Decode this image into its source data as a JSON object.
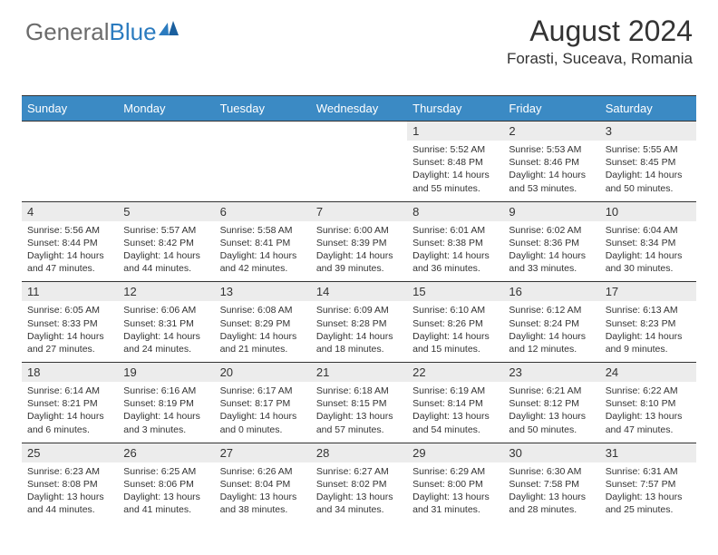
{
  "logo": {
    "general": "General",
    "blue": "Blue"
  },
  "header": {
    "month_title": "August 2024",
    "location": "Forasti, Suceava, Romania"
  },
  "colors": {
    "header_bg": "#3b8ac4",
    "daynum_bg": "#ececec",
    "border": "#333333",
    "text": "#333333",
    "logo_grey": "#6b6b6b",
    "logo_blue": "#2b7bbf"
  },
  "weekdays": [
    "Sunday",
    "Monday",
    "Tuesday",
    "Wednesday",
    "Thursday",
    "Friday",
    "Saturday"
  ],
  "weeks": [
    [
      null,
      null,
      null,
      null,
      {
        "n": "1",
        "sr": "Sunrise: 5:52 AM",
        "ss": "Sunset: 8:48 PM",
        "dl": "Daylight: 14 hours and 55 minutes."
      },
      {
        "n": "2",
        "sr": "Sunrise: 5:53 AM",
        "ss": "Sunset: 8:46 PM",
        "dl": "Daylight: 14 hours and 53 minutes."
      },
      {
        "n": "3",
        "sr": "Sunrise: 5:55 AM",
        "ss": "Sunset: 8:45 PM",
        "dl": "Daylight: 14 hours and 50 minutes."
      }
    ],
    [
      {
        "n": "4",
        "sr": "Sunrise: 5:56 AM",
        "ss": "Sunset: 8:44 PM",
        "dl": "Daylight: 14 hours and 47 minutes."
      },
      {
        "n": "5",
        "sr": "Sunrise: 5:57 AM",
        "ss": "Sunset: 8:42 PM",
        "dl": "Daylight: 14 hours and 44 minutes."
      },
      {
        "n": "6",
        "sr": "Sunrise: 5:58 AM",
        "ss": "Sunset: 8:41 PM",
        "dl": "Daylight: 14 hours and 42 minutes."
      },
      {
        "n": "7",
        "sr": "Sunrise: 6:00 AM",
        "ss": "Sunset: 8:39 PM",
        "dl": "Daylight: 14 hours and 39 minutes."
      },
      {
        "n": "8",
        "sr": "Sunrise: 6:01 AM",
        "ss": "Sunset: 8:38 PM",
        "dl": "Daylight: 14 hours and 36 minutes."
      },
      {
        "n": "9",
        "sr": "Sunrise: 6:02 AM",
        "ss": "Sunset: 8:36 PM",
        "dl": "Daylight: 14 hours and 33 minutes."
      },
      {
        "n": "10",
        "sr": "Sunrise: 6:04 AM",
        "ss": "Sunset: 8:34 PM",
        "dl": "Daylight: 14 hours and 30 minutes."
      }
    ],
    [
      {
        "n": "11",
        "sr": "Sunrise: 6:05 AM",
        "ss": "Sunset: 8:33 PM",
        "dl": "Daylight: 14 hours and 27 minutes."
      },
      {
        "n": "12",
        "sr": "Sunrise: 6:06 AM",
        "ss": "Sunset: 8:31 PM",
        "dl": "Daylight: 14 hours and 24 minutes."
      },
      {
        "n": "13",
        "sr": "Sunrise: 6:08 AM",
        "ss": "Sunset: 8:29 PM",
        "dl": "Daylight: 14 hours and 21 minutes."
      },
      {
        "n": "14",
        "sr": "Sunrise: 6:09 AM",
        "ss": "Sunset: 8:28 PM",
        "dl": "Daylight: 14 hours and 18 minutes."
      },
      {
        "n": "15",
        "sr": "Sunrise: 6:10 AM",
        "ss": "Sunset: 8:26 PM",
        "dl": "Daylight: 14 hours and 15 minutes."
      },
      {
        "n": "16",
        "sr": "Sunrise: 6:12 AM",
        "ss": "Sunset: 8:24 PM",
        "dl": "Daylight: 14 hours and 12 minutes."
      },
      {
        "n": "17",
        "sr": "Sunrise: 6:13 AM",
        "ss": "Sunset: 8:23 PM",
        "dl": "Daylight: 14 hours and 9 minutes."
      }
    ],
    [
      {
        "n": "18",
        "sr": "Sunrise: 6:14 AM",
        "ss": "Sunset: 8:21 PM",
        "dl": "Daylight: 14 hours and 6 minutes."
      },
      {
        "n": "19",
        "sr": "Sunrise: 6:16 AM",
        "ss": "Sunset: 8:19 PM",
        "dl": "Daylight: 14 hours and 3 minutes."
      },
      {
        "n": "20",
        "sr": "Sunrise: 6:17 AM",
        "ss": "Sunset: 8:17 PM",
        "dl": "Daylight: 14 hours and 0 minutes."
      },
      {
        "n": "21",
        "sr": "Sunrise: 6:18 AM",
        "ss": "Sunset: 8:15 PM",
        "dl": "Daylight: 13 hours and 57 minutes."
      },
      {
        "n": "22",
        "sr": "Sunrise: 6:19 AM",
        "ss": "Sunset: 8:14 PM",
        "dl": "Daylight: 13 hours and 54 minutes."
      },
      {
        "n": "23",
        "sr": "Sunrise: 6:21 AM",
        "ss": "Sunset: 8:12 PM",
        "dl": "Daylight: 13 hours and 50 minutes."
      },
      {
        "n": "24",
        "sr": "Sunrise: 6:22 AM",
        "ss": "Sunset: 8:10 PM",
        "dl": "Daylight: 13 hours and 47 minutes."
      }
    ],
    [
      {
        "n": "25",
        "sr": "Sunrise: 6:23 AM",
        "ss": "Sunset: 8:08 PM",
        "dl": "Daylight: 13 hours and 44 minutes."
      },
      {
        "n": "26",
        "sr": "Sunrise: 6:25 AM",
        "ss": "Sunset: 8:06 PM",
        "dl": "Daylight: 13 hours and 41 minutes."
      },
      {
        "n": "27",
        "sr": "Sunrise: 6:26 AM",
        "ss": "Sunset: 8:04 PM",
        "dl": "Daylight: 13 hours and 38 minutes."
      },
      {
        "n": "28",
        "sr": "Sunrise: 6:27 AM",
        "ss": "Sunset: 8:02 PM",
        "dl": "Daylight: 13 hours and 34 minutes."
      },
      {
        "n": "29",
        "sr": "Sunrise: 6:29 AM",
        "ss": "Sunset: 8:00 PM",
        "dl": "Daylight: 13 hours and 31 minutes."
      },
      {
        "n": "30",
        "sr": "Sunrise: 6:30 AM",
        "ss": "Sunset: 7:58 PM",
        "dl": "Daylight: 13 hours and 28 minutes."
      },
      {
        "n": "31",
        "sr": "Sunrise: 6:31 AM",
        "ss": "Sunset: 7:57 PM",
        "dl": "Daylight: 13 hours and 25 minutes."
      }
    ]
  ]
}
